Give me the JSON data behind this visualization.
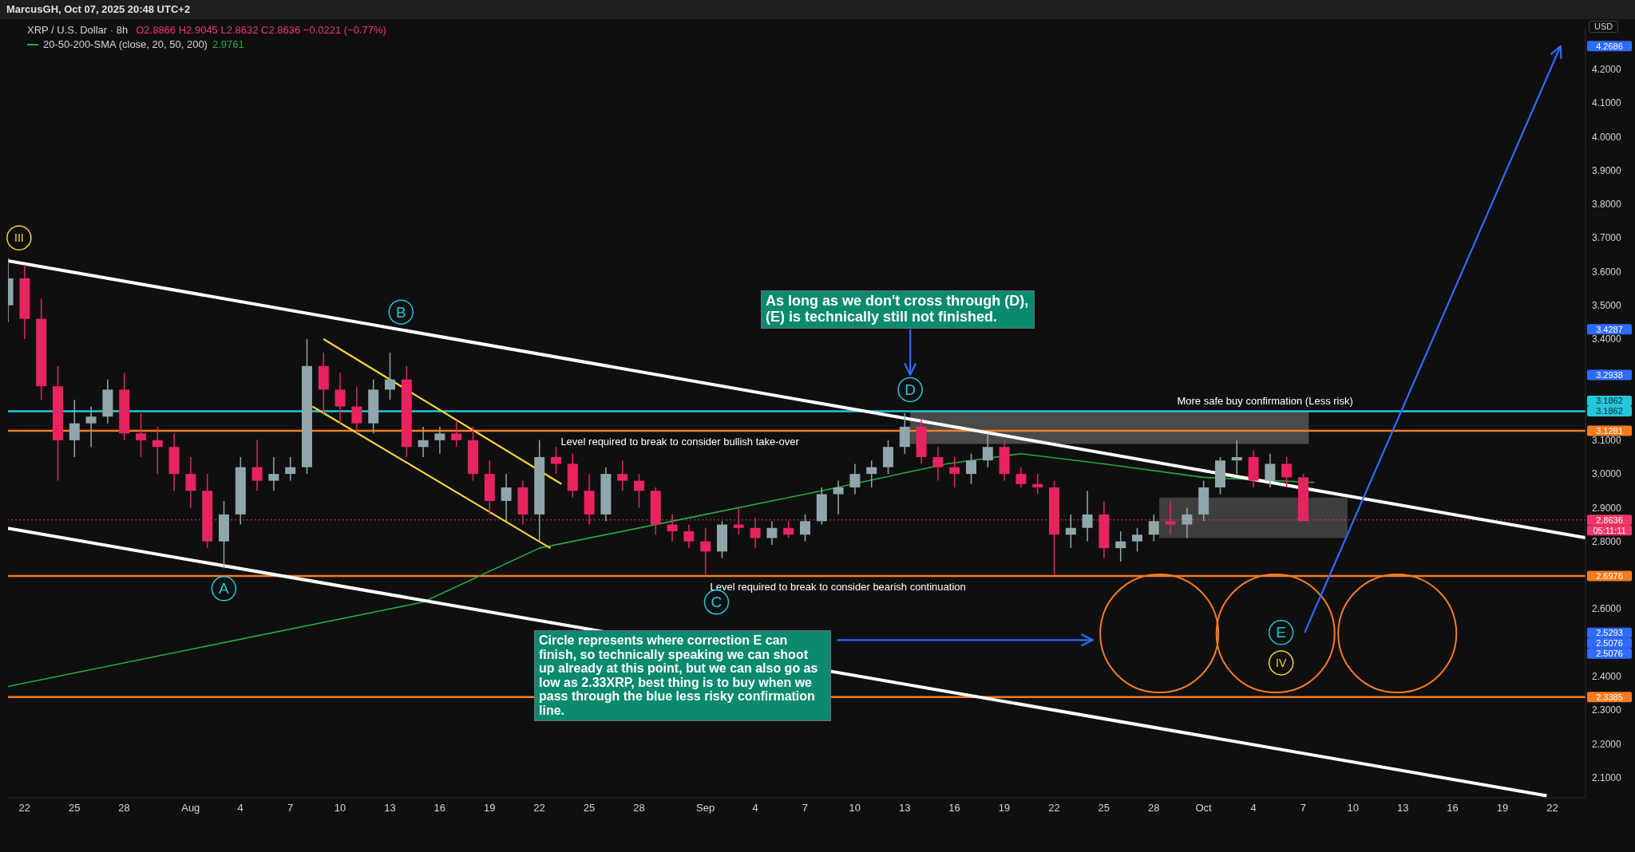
{
  "chart_data": {
    "type": "candlestick",
    "title": "XRP / U.S. Dollar · 8h",
    "ylabel": "USD",
    "legend": "top left",
    "x": [
      "2025-07-21",
      "2025-07-22",
      "2025-07-23",
      "2025-07-24",
      "2025-07-25",
      "2025-07-26",
      "2025-07-27",
      "2025-07-28",
      "2025-07-29",
      "2025-07-30",
      "2025-07-31",
      "2025-08-01",
      "2025-08-02",
      "2025-08-03",
      "2025-08-04",
      "2025-08-05",
      "2025-08-06",
      "2025-08-07",
      "2025-08-08",
      "2025-08-09",
      "2025-08-10",
      "2025-08-11",
      "2025-08-12",
      "2025-08-13",
      "2025-08-14",
      "2025-08-15",
      "2025-08-16",
      "2025-08-17",
      "2025-08-18",
      "2025-08-19",
      "2025-08-20",
      "2025-08-21",
      "2025-08-22",
      "2025-08-23",
      "2025-08-24",
      "2025-08-25",
      "2025-08-26",
      "2025-08-27",
      "2025-08-28",
      "2025-08-29",
      "2025-08-30",
      "2025-08-31",
      "2025-09-01",
      "2025-09-02",
      "2025-09-03",
      "2025-09-04",
      "2025-09-05",
      "2025-09-06",
      "2025-09-07",
      "2025-09-08",
      "2025-09-09",
      "2025-09-10",
      "2025-09-11",
      "2025-09-12",
      "2025-09-13",
      "2025-09-14",
      "2025-09-15",
      "2025-09-16",
      "2025-09-17",
      "2025-09-18",
      "2025-09-19",
      "2025-09-20",
      "2025-09-21",
      "2025-09-22",
      "2025-09-23",
      "2025-09-24",
      "2025-09-25",
      "2025-09-26",
      "2025-09-27",
      "2025-09-28",
      "2025-09-29",
      "2025-09-30",
      "2025-10-01",
      "2025-10-02",
      "2025-10-03",
      "2025-10-04",
      "2025-10-05",
      "2025-10-06",
      "2025-10-07"
    ],
    "ohlc": [
      [
        3.5,
        3.64,
        3.45,
        3.58
      ],
      [
        3.58,
        3.62,
        3.4,
        3.46
      ],
      [
        3.46,
        3.52,
        3.22,
        3.26
      ],
      [
        3.26,
        3.32,
        2.98,
        3.1
      ],
      [
        3.1,
        3.22,
        3.05,
        3.15
      ],
      [
        3.15,
        3.2,
        3.08,
        3.17
      ],
      [
        3.17,
        3.28,
        3.15,
        3.25
      ],
      [
        3.25,
        3.3,
        3.1,
        3.12
      ],
      [
        3.12,
        3.18,
        3.05,
        3.1
      ],
      [
        3.1,
        3.14,
        3.0,
        3.08
      ],
      [
        3.08,
        3.12,
        2.95,
        3.0
      ],
      [
        3.0,
        3.05,
        2.9,
        2.95
      ],
      [
        2.95,
        3.0,
        2.78,
        2.8
      ],
      [
        2.8,
        2.92,
        2.72,
        2.88
      ],
      [
        2.88,
        3.05,
        2.85,
        3.02
      ],
      [
        3.02,
        3.1,
        2.95,
        2.98
      ],
      [
        2.98,
        3.05,
        2.95,
        3.0
      ],
      [
        3.0,
        3.05,
        2.98,
        3.02
      ],
      [
        3.02,
        3.4,
        3.0,
        3.32
      ],
      [
        3.32,
        3.36,
        3.18,
        3.25
      ],
      [
        3.25,
        3.3,
        3.15,
        3.2
      ],
      [
        3.2,
        3.26,
        3.12,
        3.15
      ],
      [
        3.15,
        3.28,
        3.12,
        3.25
      ],
      [
        3.25,
        3.36,
        3.22,
        3.28
      ],
      [
        3.28,
        3.32,
        3.05,
        3.08
      ],
      [
        3.08,
        3.14,
        3.05,
        3.1
      ],
      [
        3.1,
        3.14,
        3.06,
        3.12
      ],
      [
        3.12,
        3.16,
        3.08,
        3.1
      ],
      [
        3.1,
        3.14,
        2.98,
        3.0
      ],
      [
        3.0,
        3.04,
        2.88,
        2.92
      ],
      [
        2.92,
        3.0,
        2.86,
        2.96
      ],
      [
        2.96,
        2.98,
        2.85,
        2.88
      ],
      [
        2.88,
        3.1,
        2.8,
        3.05
      ],
      [
        3.05,
        3.08,
        3.0,
        3.03
      ],
      [
        3.03,
        3.06,
        2.93,
        2.95
      ],
      [
        2.95,
        3.0,
        2.85,
        2.88
      ],
      [
        2.88,
        3.02,
        2.86,
        3.0
      ],
      [
        3.0,
        3.04,
        2.95,
        2.98
      ],
      [
        2.98,
        3.0,
        2.9,
        2.95
      ],
      [
        2.95,
        2.96,
        2.82,
        2.85
      ],
      [
        2.85,
        2.88,
        2.8,
        2.83
      ],
      [
        2.83,
        2.85,
        2.78,
        2.8
      ],
      [
        2.8,
        2.84,
        2.7,
        2.77
      ],
      [
        2.77,
        2.86,
        2.75,
        2.85
      ],
      [
        2.85,
        2.9,
        2.82,
        2.84
      ],
      [
        2.84,
        2.87,
        2.78,
        2.81
      ],
      [
        2.81,
        2.86,
        2.79,
        2.84
      ],
      [
        2.84,
        2.86,
        2.81,
        2.82
      ],
      [
        2.82,
        2.88,
        2.8,
        2.86
      ],
      [
        2.86,
        2.96,
        2.85,
        2.94
      ],
      [
        2.94,
        2.98,
        2.88,
        2.96
      ],
      [
        2.96,
        3.03,
        2.94,
        3.0
      ],
      [
        3.0,
        3.04,
        2.96,
        3.02
      ],
      [
        3.02,
        3.1,
        3.0,
        3.08
      ],
      [
        3.08,
        3.18,
        3.06,
        3.14
      ],
      [
        3.14,
        3.16,
        3.03,
        3.05
      ],
      [
        3.05,
        3.08,
        2.98,
        3.02
      ],
      [
        3.02,
        3.05,
        2.96,
        3.0
      ],
      [
        3.0,
        3.06,
        2.97,
        3.04
      ],
      [
        3.04,
        3.12,
        3.02,
        3.08
      ],
      [
        3.08,
        3.1,
        2.98,
        3.0
      ],
      [
        3.0,
        3.02,
        2.96,
        2.97
      ],
      [
        2.97,
        3.0,
        2.94,
        2.96
      ],
      [
        2.96,
        2.98,
        2.7,
        2.82
      ],
      [
        2.82,
        2.88,
        2.78,
        2.84
      ],
      [
        2.84,
        2.95,
        2.8,
        2.88
      ],
      [
        2.88,
        2.92,
        2.75,
        2.78
      ],
      [
        2.78,
        2.83,
        2.74,
        2.8
      ],
      [
        2.8,
        2.84,
        2.77,
        2.82
      ],
      [
        2.82,
        2.88,
        2.8,
        2.86
      ],
      [
        2.86,
        2.92,
        2.82,
        2.85
      ],
      [
        2.85,
        2.9,
        2.81,
        2.88
      ],
      [
        2.88,
        2.98,
        2.86,
        2.96
      ],
      [
        2.96,
        3.05,
        2.94,
        3.04
      ],
      [
        3.04,
        3.1,
        3.0,
        3.05
      ],
      [
        3.05,
        3.07,
        2.96,
        2.98
      ],
      [
        2.98,
        3.06,
        2.96,
        3.03
      ],
      [
        3.03,
        3.05,
        2.96,
        2.99
      ],
      [
        2.99,
        3.0,
        2.86,
        2.86
      ]
    ],
    "series": [
      {
        "type": "line",
        "name": "20-50-200-SMA (close, 20, 50, 200)",
        "color": "#22ab45",
        "x": [
          "2025-07-21",
          "2025-08-01",
          "2025-08-15",
          "2025-08-22",
          "2025-09-01",
          "2025-09-08",
          "2025-09-15T12:00",
          "2025-09-20",
          "2025-09-25",
          "2025-10-01",
          "2025-10-07T16:00"
        ],
        "values": [
          2.37,
          2.48,
          2.62,
          2.78,
          2.88,
          2.95,
          3.03,
          3.06,
          3.03,
          2.99,
          2.975
        ]
      },
      {
        "type": "line",
        "color": "#ffffff",
        "x": [
          "2025-07-21",
          "2025-10-24"
        ],
        "values": [
          3.632,
          2.811
        ]
      },
      {
        "type": "line",
        "color": "#ffffff",
        "x": [
          "2025-07-21",
          "2025-10-21T16:00"
        ],
        "values": [
          2.839,
          2.046
        ]
      },
      {
        "type": "line",
        "color": "#f5d33a",
        "x": [
          "2025-08-09",
          "2025-08-23T08:00"
        ],
        "values": [
          3.4,
          2.97
        ]
      },
      {
        "type": "line",
        "color": "#f5d33a",
        "x": [
          "2025-08-08T08:00",
          "2025-08-22T16:00"
        ],
        "values": [
          3.2,
          2.78
        ]
      }
    ],
    "xlim": [
      "2025-07-21",
      "2025-10-24"
    ],
    "xticks": [
      {
        "value": "2025-07-22",
        "label": "22"
      },
      {
        "value": "2025-07-25",
        "label": "25"
      },
      {
        "value": "2025-07-28",
        "label": "28"
      },
      {
        "value": "2025-08-01",
        "label": "Aug"
      },
      {
        "value": "2025-08-04",
        "label": "4"
      },
      {
        "value": "2025-08-07",
        "label": "7"
      },
      {
        "value": "2025-08-10",
        "label": "10"
      },
      {
        "value": "2025-08-13",
        "label": "13"
      },
      {
        "value": "2025-08-16",
        "label": "16"
      },
      {
        "value": "2025-08-19",
        "label": "19"
      },
      {
        "value": "2025-08-22",
        "label": "22"
      },
      {
        "value": "2025-08-25",
        "label": "25"
      },
      {
        "value": "2025-08-28",
        "label": "28"
      },
      {
        "value": "2025-09-01",
        "label": "Sep"
      },
      {
        "value": "2025-09-04",
        "label": "4"
      },
      {
        "value": "2025-09-07",
        "label": "7"
      },
      {
        "value": "2025-09-10",
        "label": "10"
      },
      {
        "value": "2025-09-13",
        "label": "13"
      },
      {
        "value": "2025-09-16",
        "label": "16"
      },
      {
        "value": "2025-09-19",
        "label": "19"
      },
      {
        "value": "2025-09-22",
        "label": "22"
      },
      {
        "value": "2025-09-25",
        "label": "25"
      },
      {
        "value": "2025-09-28",
        "label": "28"
      },
      {
        "value": "2025-10-01",
        "label": "Oct"
      },
      {
        "value": "2025-10-04",
        "label": "4"
      },
      {
        "value": "2025-10-07",
        "label": "7"
      },
      {
        "value": "2025-10-10",
        "label": "10"
      },
      {
        "value": "2025-10-13",
        "label": "13"
      },
      {
        "value": "2025-10-16",
        "label": "16"
      },
      {
        "value": "2025-10-19",
        "label": "19"
      },
      {
        "value": "2025-10-22",
        "label": "22"
      }
    ],
    "ylim": [
      2.04,
      4.32
    ],
    "yticks": [
      {
        "value": 2.1,
        "label": "2.1000"
      },
      {
        "value": 2.2,
        "label": "2.2000"
      },
      {
        "value": 2.3,
        "label": "2.3000"
      },
      {
        "value": 2.4,
        "label": "2.4000"
      },
      {
        "value": 2.6,
        "label": "2.6000"
      },
      {
        "value": 2.8,
        "label": "2.8000"
      },
      {
        "value": 2.9,
        "label": "2.9000"
      },
      {
        "value": 3.0,
        "label": "3.0000"
      },
      {
        "value": 3.1,
        "label": "3.1000"
      },
      {
        "value": 3.4,
        "label": "3.4000"
      },
      {
        "value": 3.5,
        "label": "3.5000"
      },
      {
        "value": 3.6,
        "label": "3.6000"
      },
      {
        "value": 3.7,
        "label": "3.7000"
      },
      {
        "value": 3.8,
        "label": "3.8000"
      },
      {
        "value": 3.9,
        "label": "3.9000"
      },
      {
        "value": 4.0,
        "label": "4.0000"
      },
      {
        "value": 4.1,
        "label": "4.1000"
      },
      {
        "value": 4.2,
        "label": "4.2000"
      }
    ],
    "ref_lines": [
      {
        "axis": "y",
        "value": 3.1862,
        "label": "3.1862",
        "color": "#26c6da"
      },
      {
        "axis": "y",
        "value": 3.1281,
        "label": "3.1281",
        "color": "#f57c1f"
      },
      {
        "axis": "y",
        "value": 2.6976,
        "label": "2.6976",
        "color": "#f57c1f"
      },
      {
        "axis": "y",
        "value": 2.3385,
        "label": "2.3385",
        "color": "#f57c1f"
      },
      {
        "axis": "y",
        "value": 2.8636,
        "label": "2.8636",
        "color": "#f23667",
        "line_style": "dotted"
      }
    ],
    "annotations": [
      "MarcusGH, Oct 07, 2025 20:48 UTC+2",
      "O2.8866 H2.9045 L2.8632 C2.8636 −0.0221 (−0.77%)",
      "2.9761",
      "As long as we don't cross through (D), (E) is technically still not finished.",
      "Circle represents where correction E can finish, so technically speaking we can shoot up already at this point, but we can also go as low as 2.33XRP, best thing is to buy when we pass through the blue less risky confirmation line.",
      {
        "text": "Level required to break to consider bullish take-over",
        "x": "2025-08-23",
        "y": 3.1281
      },
      {
        "text": "Level required to break to consider bearish continuation",
        "x": "2025-09-01",
        "y": 2.6976
      },
      {
        "text": "More safe buy confirmation (Less risk)",
        "x": "2025-10-10",
        "y": 3.1862
      },
      {
        "text": "A",
        "x": "2025-08-03",
        "y": 2.66
      },
      {
        "text": "B",
        "x": "2025-08-13T16:00",
        "y": 3.48
      },
      {
        "text": "C",
        "x": "2025-09-01T16:00",
        "y": 2.62
      },
      {
        "text": "D",
        "x": "2025-09-13T08:00",
        "y": 3.25
      },
      {
        "text": "E",
        "x": "2025-10-05T16:00",
        "y": 2.53
      },
      {
        "text": "III",
        "x": "2025-07-21T16:00",
        "y": 3.7
      },
      {
        "text": "IV",
        "x": "2025-10-05T16:00",
        "y": 2.44
      },
      "05:11:11",
      "3.1862",
      "4.2686",
      "3.4287",
      "3.2938",
      "2.5293",
      "2.5076",
      "2.5076"
    ]
  }
}
